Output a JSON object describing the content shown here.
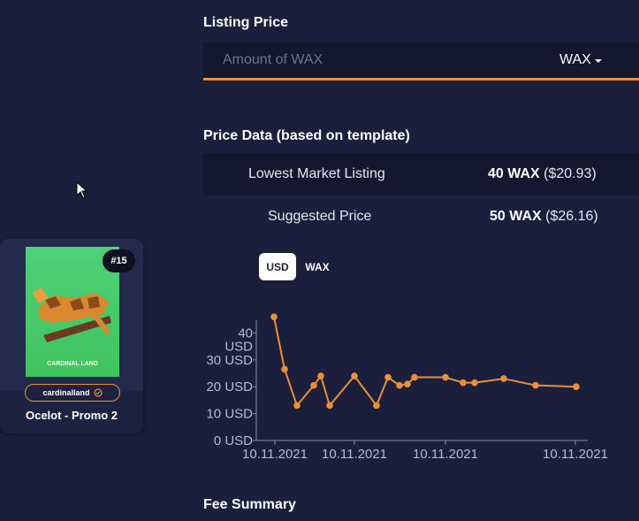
{
  "listing": {
    "title": "Listing Price",
    "input_placeholder": "Amount of WAX",
    "currency": "WAX"
  },
  "price_data": {
    "title": "Price Data (based on template)",
    "lowest_label": "Lowest Market Listing",
    "lowest_wax": "40 WAX",
    "lowest_usd": "($20.93)",
    "suggested_label": "Suggested Price",
    "suggested_wax": "50 WAX",
    "suggested_usd": "($26.16)"
  },
  "toggle": {
    "usd": "USD",
    "wax": "WAX",
    "active": "USD"
  },
  "fee": {
    "title": "Fee Summary"
  },
  "card": {
    "badge": "#15",
    "collection": "cardinalland",
    "name": "Ocelot - Promo 2",
    "image_text": "CARDINAL LAND"
  },
  "colors": {
    "accent": "#e8913a",
    "background": "#1c1f3b",
    "panel": "#14172e"
  },
  "chart_data": {
    "type": "line",
    "title": "",
    "xlabel": "",
    "ylabel": "",
    "y_ticks": [
      "0 USD",
      "10 USD",
      "20 USD",
      "30 USD",
      "40 USD"
    ],
    "x_ticks": [
      "10.11.2021",
      "10.11.2021",
      "10.11.2021",
      "10.11.2021"
    ],
    "ylim": [
      0,
      48
    ],
    "series": [
      {
        "values": [
          46,
          26.5,
          13,
          20.5,
          24,
          13,
          24,
          13,
          23.5,
          20.5,
          21,
          23.5,
          23.5,
          21.5,
          21.5,
          23,
          20.5,
          20
        ]
      }
    ],
    "color": "#e8913a",
    "grid": false
  }
}
